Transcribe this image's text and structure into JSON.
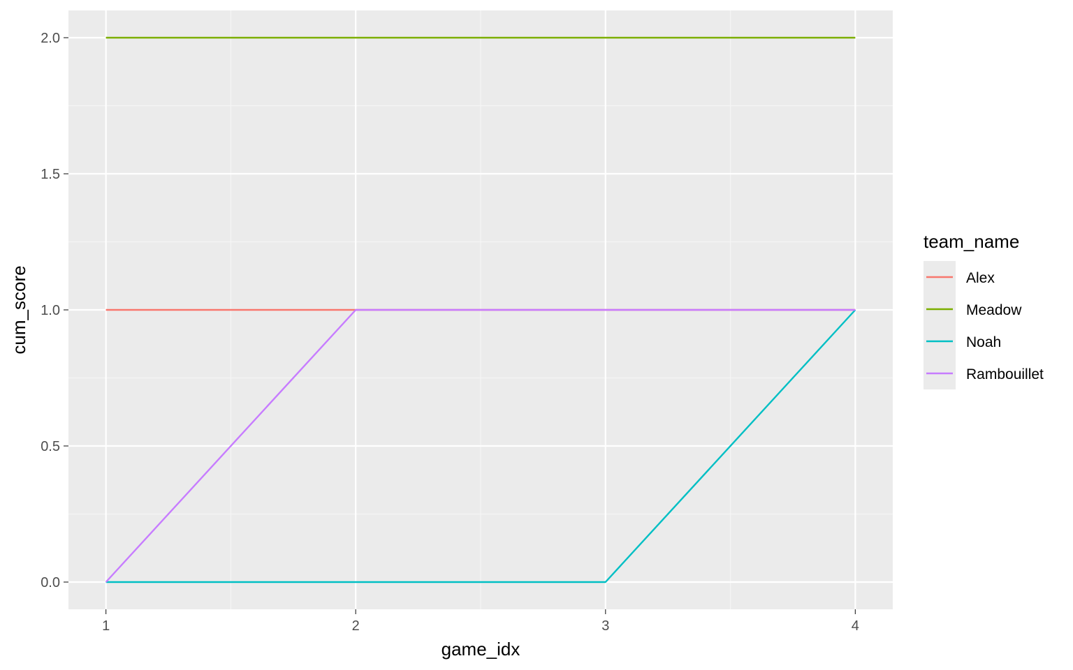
{
  "chart_data": {
    "type": "line",
    "xlabel": "game_idx",
    "ylabel": "cum_score",
    "x": [
      1,
      2,
      3,
      4
    ],
    "xlim": [
      0.85,
      4.15
    ],
    "ylim": [
      -0.1,
      2.1
    ],
    "x_ticks": [
      "1",
      "2",
      "3",
      "4"
    ],
    "y_ticks": [
      "0.0",
      "0.5",
      "1.0",
      "1.5",
      "2.0"
    ],
    "y_tick_values": [
      0,
      0.5,
      1,
      1.5,
      2
    ],
    "grid": true,
    "legend": {
      "title": "team_name",
      "placement": "right"
    },
    "series": [
      {
        "name": "Alex",
        "color": "#F8766D",
        "values": [
          1,
          1,
          1,
          1
        ]
      },
      {
        "name": "Meadow",
        "color": "#7CAE00",
        "values": [
          2,
          2,
          2,
          2
        ]
      },
      {
        "name": "Noah",
        "color": "#00BFC4",
        "values": [
          0,
          0,
          0,
          1
        ]
      },
      {
        "name": "Rambouillet",
        "color": "#C77CFF",
        "values": [
          0,
          1,
          1,
          1
        ]
      }
    ],
    "colors": {
      "panel_background": "#EBEBEB",
      "grid_major": "#FFFFFF",
      "grid_minor": "#F5F5F5"
    }
  }
}
